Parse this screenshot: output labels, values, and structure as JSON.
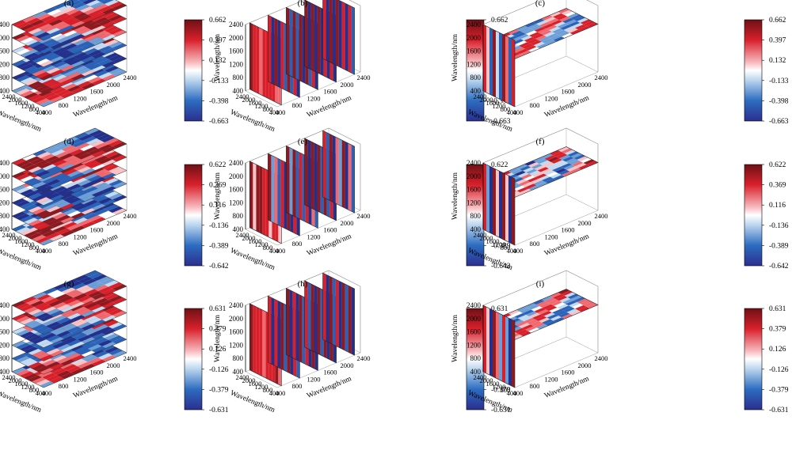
{
  "figure": {
    "axis_label": "Wavelength/nm",
    "z_ticks": [
      "2400",
      "2000",
      "1600",
      "1200",
      "800",
      "400"
    ],
    "left_ticks": [
      "2400",
      "2000",
      "1600",
      "1200",
      "800",
      "400"
    ],
    "right_ticks_slice": [
      "400",
      "800",
      "1200",
      "1600",
      "2000",
      "2400"
    ],
    "panel_labels": [
      "(a)",
      "(b)",
      "(c)",
      "(d)",
      "(e)",
      "(f)",
      "(g)",
      "(h)",
      "(i)"
    ],
    "colors": {
      "low": "#2b2f8f",
      "mid": "#ffffff",
      "high": "#7a1318",
      "blue": "#1f4ea8",
      "red": "#d8202b"
    }
  },
  "chart_data": [
    {
      "type": "heatmap",
      "panel": "(a)",
      "view": "horizontal-slices",
      "colorbar": [
        "0.662",
        "0.397",
        "0.132",
        "-0.133",
        "-0.398",
        "-0.663"
      ],
      "clim": [
        -0.663,
        0.662
      ]
    },
    {
      "type": "heatmap",
      "panel": "(b)",
      "view": "vertical-slices",
      "colorbar": [
        "0.662",
        "0.397",
        "0.132",
        "-0.133",
        "-0.398",
        "-0.663"
      ],
      "clim": [
        -0.663,
        0.662
      ]
    },
    {
      "type": "heatmap",
      "panel": "(c)",
      "view": "orthogonal-slices",
      "colorbar": [
        "0.662",
        "0.397",
        "0.132",
        "-0.133",
        "-0.398",
        "-0.663"
      ],
      "clim": [
        -0.663,
        0.662
      ]
    },
    {
      "type": "heatmap",
      "panel": "(d)",
      "view": "horizontal-slices",
      "colorbar": [
        "0.622",
        "0.369",
        "0.116",
        "-0.136",
        "-0.389",
        "-0.642"
      ],
      "clim": [
        -0.642,
        0.622
      ]
    },
    {
      "type": "heatmap",
      "panel": "(e)",
      "view": "vertical-slices",
      "colorbar": [
        "0.622",
        "0.369",
        "0.116",
        "-0.136",
        "-0.389",
        "-0.642"
      ],
      "clim": [
        -0.642,
        0.622
      ]
    },
    {
      "type": "heatmap",
      "panel": "(f)",
      "view": "orthogonal-slices",
      "colorbar": [
        "0.622",
        "0.369",
        "0.116",
        "-0.136",
        "-0.389",
        "-0.642"
      ],
      "clim": [
        -0.642,
        0.622
      ]
    },
    {
      "type": "heatmap",
      "panel": "(g)",
      "view": "horizontal-slices",
      "colorbar": [
        "0.631",
        "0.379",
        "0.126",
        "-0.126",
        "-0.379",
        "-0.631"
      ],
      "clim": [
        -0.631,
        0.631
      ]
    },
    {
      "type": "heatmap",
      "panel": "(h)",
      "view": "vertical-slices",
      "colorbar": [
        "0.631",
        "0.379",
        "0.126",
        "-0.126",
        "-0.379",
        "-0.631"
      ],
      "clim": [
        -0.631,
        0.631
      ]
    },
    {
      "type": "heatmap",
      "panel": "(i)",
      "view": "orthogonal-slices",
      "colorbar": [
        "0.631",
        "0.379",
        "0.126",
        "-0.126",
        "-0.379",
        "-0.631"
      ],
      "clim": [
        -0.631,
        0.631
      ]
    }
  ]
}
